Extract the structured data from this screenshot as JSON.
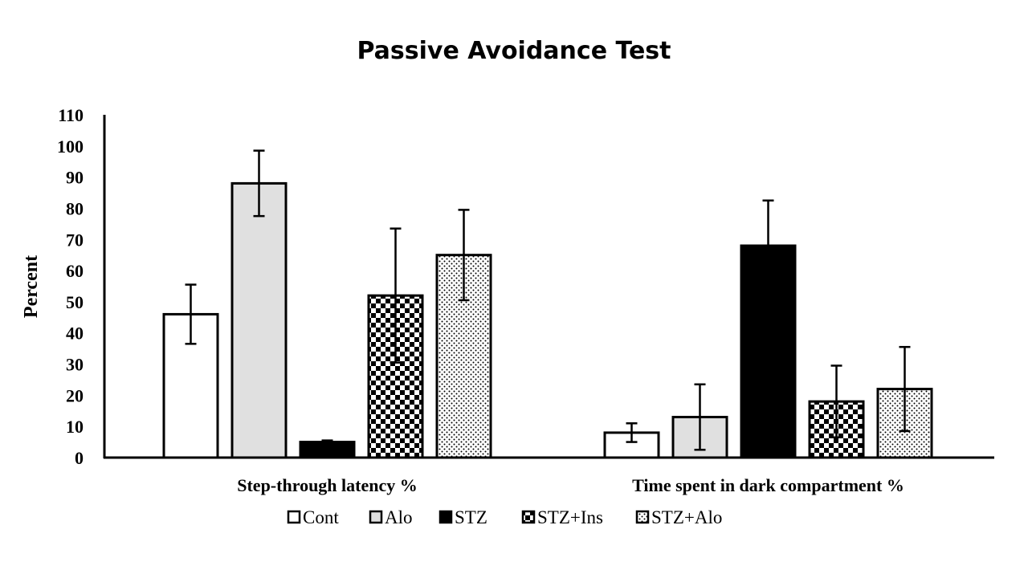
{
  "chart_data": {
    "type": "bar",
    "title": "Passive Avoidance Test",
    "ylabel": "Percent",
    "xlabel": "",
    "ylim": [
      0,
      110
    ],
    "ytick_step": 10,
    "categories": [
      "Step-through latency %",
      "Time spent in dark compartment %"
    ],
    "series": [
      {
        "name": "Cont",
        "values": [
          46,
          8
        ],
        "errors": [
          9.5,
          3
        ],
        "pattern": "white"
      },
      {
        "name": "Alo",
        "values": [
          88,
          13
        ],
        "errors": [
          10.5,
          10.5
        ],
        "pattern": "lightgray"
      },
      {
        "name": "STZ",
        "values": [
          5,
          68
        ],
        "errors": [
          0.5,
          14.5
        ],
        "pattern": "black"
      },
      {
        "name": "STZ+Ins",
        "values": [
          52,
          18
        ],
        "errors": [
          21.5,
          11.5
        ],
        "pattern": "checker"
      },
      {
        "name": "STZ+Alo",
        "values": [
          65,
          22
        ],
        "errors": [
          14.5,
          13.5
        ],
        "pattern": "dots"
      }
    ],
    "grid": false,
    "legend_position": "bottom"
  }
}
